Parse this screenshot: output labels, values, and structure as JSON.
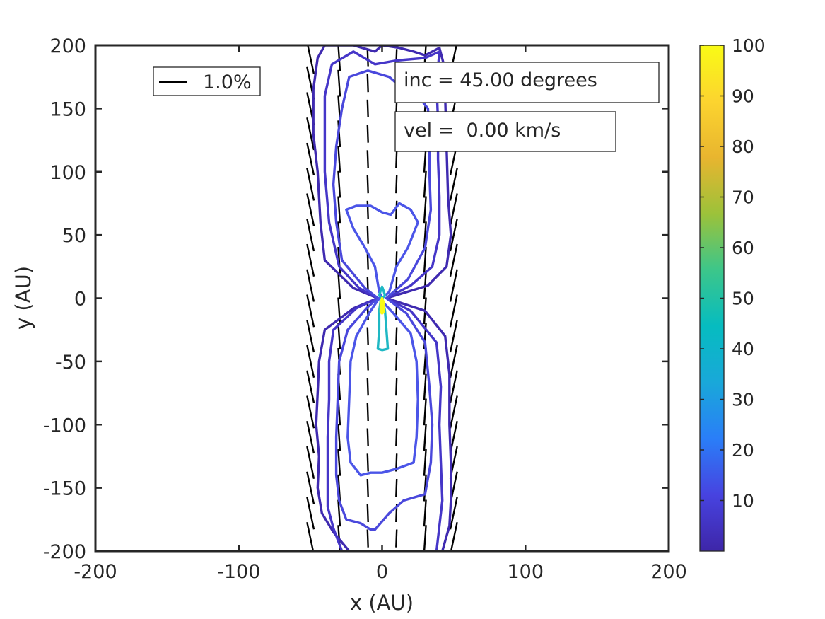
{
  "chart_data": {
    "type": "contour",
    "xlabel": "x (AU)",
    "ylabel": "y (AU)",
    "xlim": [
      -200,
      200
    ],
    "ylim": [
      -200,
      200
    ],
    "x_ticks": [
      -200,
      -100,
      0,
      100,
      200
    ],
    "y_ticks": [
      200,
      150,
      100,
      50,
      0,
      -50,
      -100,
      -150,
      -200
    ],
    "x_tick_labels": [
      "-200",
      "-100",
      "0",
      "100",
      "200"
    ],
    "y_tick_labels": [
      "200",
      "150",
      "100",
      "50",
      "0",
      "-50",
      "-100",
      "-150",
      "-200"
    ],
    "colorbar": {
      "min": 0,
      "max": 100,
      "ticks": [
        100,
        90,
        80,
        70,
        60,
        50,
        40,
        30,
        20,
        10
      ],
      "tick_labels": [
        "100",
        "90",
        "80",
        "70",
        "60",
        "50",
        "40",
        "30",
        "20",
        "10"
      ],
      "colormap": "parula",
      "colors": [
        "#3e26a8",
        "#4743e0",
        "#2a7ef8",
        "#19a8d9",
        "#06bcc0",
        "#3cc68a",
        "#9cc23a",
        "#e8b52f",
        "#fcd42f",
        "#f9fb15"
      ]
    },
    "legend": {
      "label": "1.0%",
      "location": "top-left"
    },
    "annotations": {
      "inclination": "inc = 45.00 degrees",
      "velocity": "vel =  0.00 km/s"
    },
    "series": [
      {
        "name": "contour level 3 (outer)",
        "level": 3,
        "color": "#3f2ab0",
        "points": [
          [
            -23,
            -200
          ],
          [
            -34,
            -185
          ],
          [
            -42,
            -170
          ],
          [
            -45,
            -150
          ],
          [
            -44,
            -125
          ],
          [
            -46,
            -100
          ],
          [
            -45,
            -75
          ],
          [
            -44,
            -50
          ],
          [
            -40,
            -25
          ],
          [
            -20,
            -8
          ],
          [
            -3,
            0
          ],
          [
            -20,
            8
          ],
          [
            -40,
            30
          ],
          [
            -43,
            60
          ],
          [
            -45,
            100
          ],
          [
            -48,
            130
          ],
          [
            -48,
            165
          ],
          [
            -45,
            190
          ],
          [
            -40,
            200
          ],
          [
            -20,
            200
          ],
          [
            -5,
            195
          ],
          [
            0,
            200
          ],
          [
            12,
            198
          ],
          [
            22,
            195
          ],
          [
            30,
            192
          ],
          [
            40,
            198
          ],
          [
            43,
            185
          ],
          [
            44,
            160
          ],
          [
            45,
            120
          ],
          [
            46,
            80
          ],
          [
            48,
            50
          ],
          [
            45,
            25
          ],
          [
            32,
            10
          ],
          [
            3,
            0
          ],
          [
            30,
            -10
          ],
          [
            44,
            -30
          ],
          [
            47,
            -60
          ],
          [
            47,
            -100
          ],
          [
            48,
            -130
          ],
          [
            48,
            -160
          ],
          [
            47,
            -180
          ],
          [
            42,
            -200
          ]
        ]
      },
      {
        "name": "contour level 5",
        "level": 5,
        "color": "#4536c8",
        "points": [
          [
            -28,
            -200
          ],
          [
            -34,
            -182
          ],
          [
            -38,
            -165
          ],
          [
            -38,
            -140
          ],
          [
            -38,
            -110
          ],
          [
            -37,
            -80
          ],
          [
            -37,
            -50
          ],
          [
            -34,
            -25
          ],
          [
            -18,
            -8
          ],
          [
            -3,
            0
          ],
          [
            -16,
            8
          ],
          [
            -30,
            25
          ],
          [
            -37,
            60
          ],
          [
            -40,
            100
          ],
          [
            -40,
            130
          ],
          [
            -40,
            160
          ],
          [
            -35,
            185
          ],
          [
            -20,
            195
          ],
          [
            -5,
            185
          ],
          [
            10,
            188
          ],
          [
            30,
            190
          ],
          [
            40,
            195
          ],
          [
            38,
            170
          ],
          [
            39,
            140
          ],
          [
            39,
            110
          ],
          [
            40,
            80
          ],
          [
            40,
            50
          ],
          [
            35,
            25
          ],
          [
            20,
            10
          ],
          [
            3,
            0
          ],
          [
            20,
            -10
          ],
          [
            38,
            -35
          ],
          [
            41,
            -70
          ],
          [
            40,
            -100
          ],
          [
            41,
            -130
          ],
          [
            42,
            -160
          ],
          [
            40,
            -180
          ],
          [
            38,
            -200
          ]
        ]
      },
      {
        "name": "contour level 10",
        "level": 10,
        "color": "#4a48dc",
        "points": [
          [
            -8,
            -183
          ],
          [
            -15,
            -178
          ],
          [
            -25,
            -175
          ],
          [
            -30,
            -160
          ],
          [
            -32,
            -140
          ],
          [
            -32,
            -110
          ],
          [
            -31,
            -80
          ],
          [
            -30,
            -50
          ],
          [
            -24,
            -25
          ],
          [
            -10,
            -7
          ],
          [
            -3,
            0
          ],
          [
            -12,
            8
          ],
          [
            -28,
            30
          ],
          [
            -32,
            60
          ],
          [
            -34,
            90
          ],
          [
            -32,
            120
          ],
          [
            -28,
            150
          ],
          [
            -23,
            175
          ],
          [
            -10,
            180
          ],
          [
            5,
            175
          ],
          [
            15,
            165
          ],
          [
            25,
            160
          ],
          [
            32,
            150
          ],
          [
            33,
            125
          ],
          [
            33,
            100
          ],
          [
            34,
            70
          ],
          [
            30,
            40
          ],
          [
            18,
            15
          ],
          [
            3,
            0
          ],
          [
            17,
            -12
          ],
          [
            30,
            -35
          ],
          [
            33,
            -70
          ],
          [
            35,
            -100
          ],
          [
            34,
            -130
          ],
          [
            30,
            -155
          ],
          [
            15,
            -160
          ],
          [
            5,
            -170
          ],
          [
            -5,
            -183
          ]
        ]
      },
      {
        "name": "contour level 20 (lower lobe)",
        "level": 20,
        "color": "#4b55e8",
        "points": [
          [
            -15,
            -140
          ],
          [
            -22,
            -130
          ],
          [
            -24,
            -110
          ],
          [
            -23,
            -80
          ],
          [
            -22,
            -50
          ],
          [
            -18,
            -30
          ],
          [
            -8,
            -10
          ],
          [
            -2,
            0
          ],
          [
            8,
            -12
          ],
          [
            20,
            -28
          ],
          [
            24,
            -50
          ],
          [
            25,
            -80
          ],
          [
            24,
            -110
          ],
          [
            22,
            -130
          ],
          [
            10,
            -135
          ],
          [
            0,
            -138
          ],
          [
            -8,
            -138
          ],
          [
            -15,
            -140
          ]
        ]
      },
      {
        "name": "contour level 20 (upper lobe)",
        "level": 20,
        "color": "#4b55e8",
        "points": [
          [
            -25,
            70
          ],
          [
            -20,
            55
          ],
          [
            -12,
            40
          ],
          [
            -5,
            25
          ],
          [
            -2,
            5
          ],
          [
            0,
            0
          ],
          [
            5,
            5
          ],
          [
            10,
            25
          ],
          [
            18,
            40
          ],
          [
            25,
            60
          ],
          [
            20,
            70
          ],
          [
            12,
            75
          ],
          [
            6,
            66
          ],
          [
            0,
            68
          ],
          [
            -8,
            73
          ],
          [
            -18,
            73
          ],
          [
            -25,
            70
          ]
        ]
      },
      {
        "name": "contour level 50",
        "level": 50,
        "color": "#1fb8c4",
        "points": [
          [
            -3,
            -40
          ],
          [
            -2,
            -25
          ],
          [
            -2,
            -10
          ],
          [
            -1,
            -2
          ],
          [
            0,
            0
          ],
          [
            2,
            -10
          ],
          [
            3,
            -25
          ],
          [
            4,
            -40
          ],
          [
            0,
            -41
          ],
          [
            -3,
            -40
          ]
        ]
      },
      {
        "name": "contour level 50 (upper)",
        "level": 50,
        "color": "#1fb8c4",
        "points": [
          [
            -2,
            2
          ],
          [
            -1,
            6
          ],
          [
            0,
            9
          ],
          [
            1,
            6
          ],
          [
            2,
            2
          ],
          [
            0,
            0
          ],
          [
            -2,
            2
          ]
        ]
      },
      {
        "name": "contour level 90 (core)",
        "level": 90,
        "color": "#f9fb15",
        "points": [
          [
            -1,
            -11
          ],
          [
            -1,
            -3
          ],
          [
            0,
            0
          ],
          [
            1,
            -3
          ],
          [
            1,
            -11
          ],
          [
            0,
            -12
          ],
          [
            -1,
            -11
          ]
        ]
      }
    ],
    "polarization_vectors": {
      "legend_scale_percent": 1.0,
      "columns_x": [
        -50,
        -30,
        -10,
        10,
        30,
        50
      ],
      "rows_y": [
        190,
        170,
        150,
        130,
        110,
        90,
        70,
        50,
        30,
        10,
        -10,
        -30,
        -50,
        -70,
        -90,
        -110,
        -130,
        -150,
        -170,
        -190
      ],
      "vectors": [
        {
          "x": -50,
          "length": 2.6,
          "angle": 12
        },
        {
          "x": -30,
          "length": 2.1,
          "angle": 4
        },
        {
          "x": -10,
          "length": 1.4,
          "angle": 2
        },
        {
          "x": 10,
          "length": 1.4,
          "angle": -2
        },
        {
          "x": 30,
          "length": 2.1,
          "angle": -4
        },
        {
          "x": 50,
          "length": 2.6,
          "angle": -12
        }
      ]
    }
  }
}
